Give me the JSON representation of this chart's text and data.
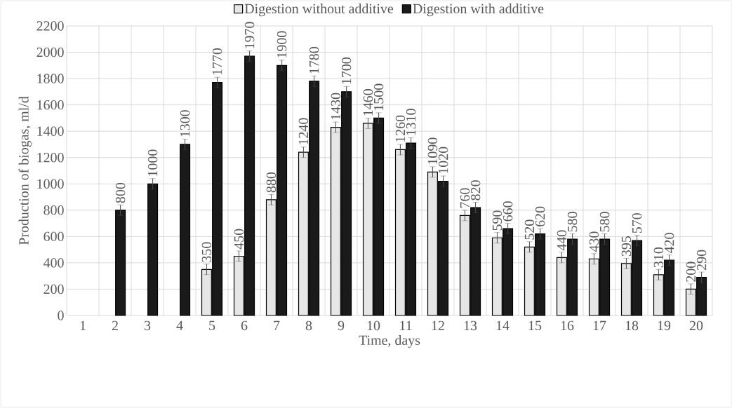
{
  "chart_data": {
    "type": "bar",
    "xlabel": "Time, days",
    "ylabel": "Production of biogas, ml/d",
    "categories": [
      "1",
      "2",
      "3",
      "4",
      "5",
      "6",
      "7",
      "8",
      "9",
      "10",
      "11",
      "12",
      "13",
      "14",
      "15",
      "16",
      "17",
      "18",
      "19",
      "20"
    ],
    "series": [
      {
        "name": "Digestion without additive",
        "color": "#e6e6e6",
        "values": [
          null,
          null,
          null,
          null,
          350,
          450,
          880,
          1240,
          1430,
          1460,
          1260,
          1090,
          760,
          590,
          520,
          440,
          430,
          395,
          310,
          200
        ],
        "errors": [
          null,
          null,
          null,
          null,
          40,
          40,
          40,
          40,
          40,
          40,
          40,
          40,
          40,
          40,
          40,
          40,
          40,
          40,
          40,
          40
        ],
        "value_labels": [
          null,
          null,
          null,
          null,
          "350",
          "450",
          "880",
          "1240",
          "1430",
          "1460",
          "1260",
          "1090",
          "760",
          "590",
          "520",
          "440",
          "430",
          "395",
          "310",
          "200"
        ]
      },
      {
        "name": "Digestion with additive",
        "color": "#1a1a1a",
        "values": [
          null,
          800,
          1000,
          1300,
          1770,
          1970,
          1900,
          1780,
          1700,
          1500,
          1310,
          1020,
          820,
          660,
          620,
          580,
          580,
          570,
          420,
          290
        ],
        "errors": [
          null,
          40,
          40,
          40,
          40,
          40,
          40,
          40,
          40,
          40,
          40,
          40,
          40,
          40,
          40,
          40,
          40,
          40,
          40,
          40
        ],
        "value_labels": [
          null,
          "800",
          "1000",
          "1300",
          "1770",
          "1970",
          "1900",
          "1780",
          "1700",
          "1500",
          "1310",
          "1020",
          "820",
          "660",
          "620",
          "580",
          "580",
          "570",
          "420",
          "290"
        ]
      }
    ],
    "ylim": [
      0,
      2200
    ],
    "yticks": [
      0,
      200,
      400,
      600,
      800,
      1000,
      1200,
      1400,
      1600,
      1800,
      2000,
      2200
    ],
    "grid": true,
    "legend": "top"
  }
}
